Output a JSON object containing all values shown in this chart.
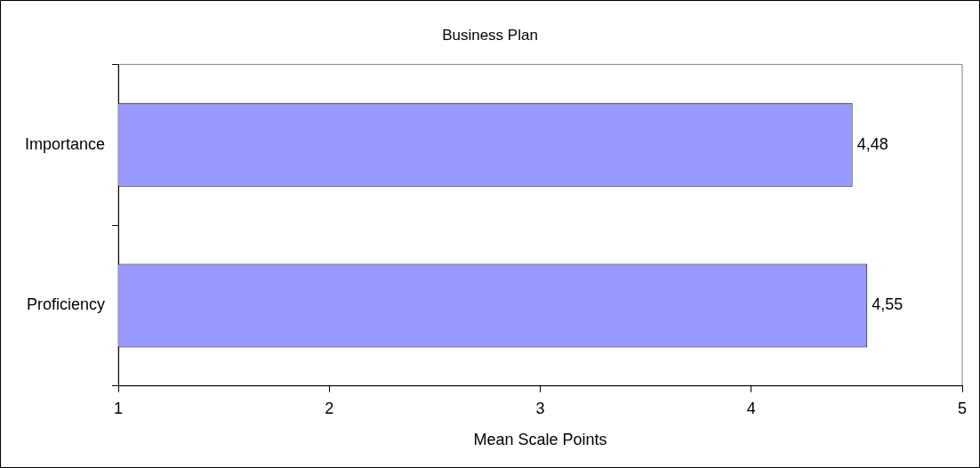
{
  "chart_data": {
    "type": "bar",
    "orientation": "horizontal",
    "title": "Business Plan",
    "xlabel": "Mean Scale Points",
    "categories": [
      "Importance",
      "Proficiency"
    ],
    "values": [
      4.48,
      4.55
    ],
    "value_labels": [
      "4,48",
      "4,55"
    ],
    "color": "#9999ff",
    "xlim": [
      1,
      5
    ],
    "xticks": [
      1,
      2,
      3,
      4,
      5
    ],
    "legend": false
  }
}
